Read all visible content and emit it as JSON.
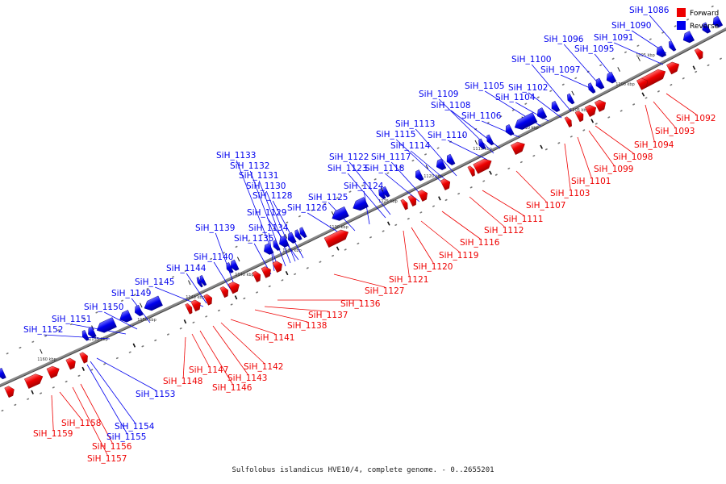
{
  "caption": "Sulfolobus islandicus HVE10/4, complete genome. - 0..2655201",
  "colors": {
    "forward": "#ee0000",
    "reverse": "#0000ee",
    "backbone": "#888888"
  },
  "legend": [
    {
      "label": "Forward",
      "color": "#ee0000"
    },
    {
      "label": "Reverse",
      "color": "#0000ee"
    }
  ],
  "ticks": [
    {
      "label": "1095 kbp",
      "major": false
    },
    {
      "label": "1100 kbp",
      "major": true
    },
    {
      "label": "1105 kbp",
      "major": false
    },
    {
      "label": "1110 kbp",
      "major": false
    },
    {
      "label": "1115 kbp",
      "major": false
    },
    {
      "label": "1120 kbp",
      "major": false
    },
    {
      "label": "1125 kbp",
      "major": false
    },
    {
      "label": "1130 kbp",
      "major": false
    },
    {
      "label": "1135 kbp",
      "major": false
    },
    {
      "label": "1140 kbp",
      "major": false
    },
    {
      "label": "1145 kbp",
      "major": false
    },
    {
      "label": "1150 kbp",
      "major": false
    },
    {
      "label": "1155 kbp",
      "major": false
    },
    {
      "label": "1160 kbp",
      "major": false
    }
  ],
  "genes_reverse": [
    "SiH_1086",
    "SiH_1090",
    "SiH_1091",
    "SiH_1095",
    "SiH_1096",
    "SiH_1097",
    "SiH_1100",
    "SiH_1102",
    "SiH_1104",
    "SiH_1105",
    "SiH_1106",
    "SiH_1108",
    "SiH_1109",
    "SiH_1110",
    "SiH_1113",
    "SiH_1114",
    "SiH_1115",
    "SiH_1117",
    "SiH_1118",
    "SiH_1122",
    "SiH_1123",
    "SiH_1124",
    "SiH_1125",
    "SiH_1126",
    "SiH_1128",
    "SiH_1129",
    "SiH_1130",
    "SiH_1131",
    "SiH_1132",
    "SiH_1133",
    "SiH_1134",
    "SiH_1135",
    "SiH_1139",
    "SiH_1140",
    "SiH_1144",
    "SiH_1145",
    "SiH_1149",
    "SiH_1150",
    "SiH_1151",
    "SiH_1152",
    "SiH_1153",
    "SiH_1154",
    "SiH_1155"
  ],
  "genes_forward": [
    "SiH_1092",
    "SiH_1093",
    "SiH_1094",
    "SiH_1098",
    "SiH_1099",
    "SiH_1101",
    "SiH_1103",
    "SiH_1107",
    "SiH_1111",
    "SiH_1112",
    "SiH_1116",
    "SiH_1119",
    "SiH_1120",
    "SiH_1121",
    "SiH_1127",
    "SiH_1136",
    "SiH_1137",
    "SiH_1138",
    "SiH_1141",
    "SiH_1142",
    "SiH_1143",
    "SiH_1146",
    "SiH_1147",
    "SiH_1148",
    "SiH_1156",
    "SiH_1157",
    "SiH_1158",
    "SiH_1159"
  ]
}
